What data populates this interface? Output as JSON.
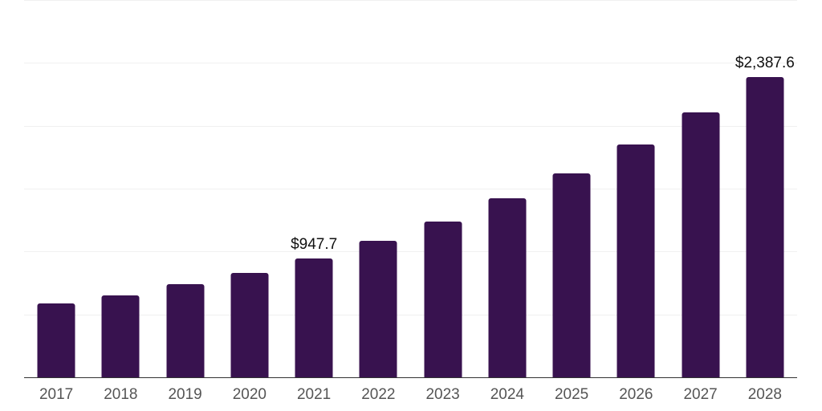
{
  "chart_data": {
    "type": "bar",
    "title": "",
    "xlabel": "",
    "ylabel": "",
    "categories": [
      "2017",
      "2018",
      "2019",
      "2020",
      "2021",
      "2022",
      "2023",
      "2024",
      "2025",
      "2026",
      "2027",
      "2028"
    ],
    "values": [
      585,
      650,
      742,
      830,
      947.7,
      1086,
      1236,
      1426,
      1622,
      1852,
      2104,
      2387.6
    ],
    "point_labels": [
      "",
      "",
      "",
      "",
      "$947.7",
      "",
      "",
      "",
      "",
      "",
      "",
      "$2,387.6"
    ],
    "ylim": [
      0,
      3000
    ],
    "gridline_step": 500,
    "grid": true,
    "legend": "none",
    "y_axis_tick_labels_visible": false,
    "colors": {
      "bar": "#38124F",
      "gridline": "#f0f0f0",
      "axis": "#333333",
      "tick_label": "#555555",
      "value_label": "#111111",
      "background": "#ffffff"
    }
  }
}
